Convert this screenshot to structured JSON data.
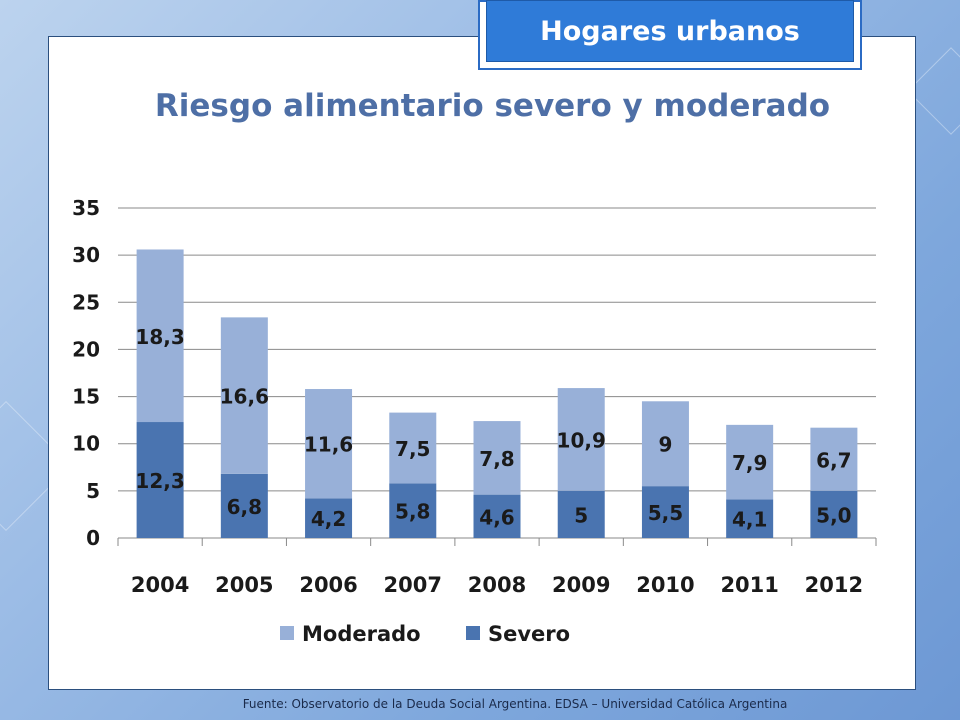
{
  "badge": "Hogares urbanos",
  "source": "Fuente:  Observatorio de  la Deuda Social Argentina. EDSA  – Universidad Católica Argentina",
  "colors": {
    "moderado": "#98b0d8",
    "severo": "#4a74b0",
    "title": "#4e6fa6"
  },
  "chart_data": {
    "type": "bar",
    "stacked": true,
    "title": "Riesgo alimentario severo y moderado",
    "categories": [
      "2004",
      "2005",
      "2006",
      "2007",
      "2008",
      "2009",
      "2010",
      "2011",
      "2012"
    ],
    "series": [
      {
        "name": "Severo",
        "values": [
          12.3,
          6.8,
          4.2,
          5.8,
          4.6,
          5,
          5.5,
          4.1,
          5.0
        ],
        "labels": [
          "12,3",
          "6,8",
          "4,2",
          "5,8",
          "4,6",
          "5",
          "5,5",
          "4,1",
          "5,0"
        ]
      },
      {
        "name": "Moderado",
        "values": [
          18.3,
          16.6,
          11.6,
          7.5,
          7.8,
          10.9,
          9,
          7.9,
          6.7
        ],
        "labels": [
          "18,3",
          "16,6",
          "11,6",
          "7,5",
          "7,8",
          "10,9",
          "9",
          "7,9",
          "6,7"
        ]
      }
    ],
    "yticks": [
      "0",
      "5",
      "10",
      "15",
      "20",
      "25",
      "30",
      "35"
    ],
    "ylim": [
      0,
      35
    ],
    "grid": true,
    "legend": {
      "position": "bottom",
      "items": [
        "Moderado",
        "Severo"
      ]
    }
  }
}
